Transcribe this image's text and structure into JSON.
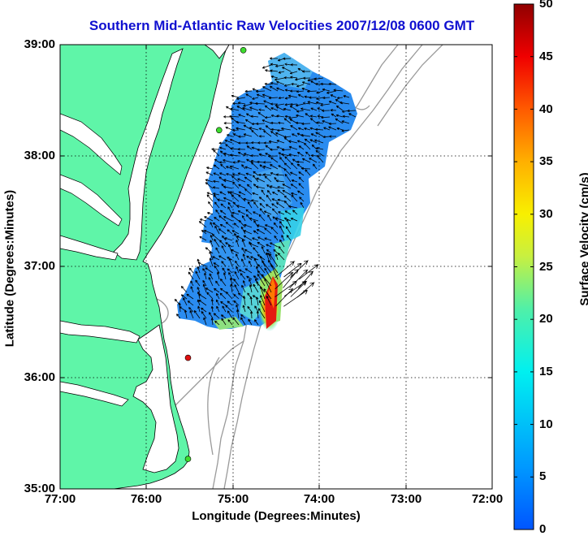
{
  "title": "Southern Mid-Atlantic Raw Velocities 2007/12/08 0600 GMT",
  "x_axis": {
    "label": "Longitude (Degrees:Minutes)",
    "ticks": [
      "77:00",
      "76:00",
      "75:00",
      "74:00",
      "73:00",
      "72:00"
    ]
  },
  "y_axis": {
    "label": "Latitude (Degrees:Minutes)",
    "ticks": [
      "39:00",
      "38:00",
      "37:00",
      "36:00",
      "35:00"
    ]
  },
  "colorbar": {
    "label": "Surface Velocity (cm/s)",
    "ticks": [
      "50",
      "45",
      "40",
      "35",
      "30",
      "25",
      "20",
      "15",
      "10",
      "5",
      "0"
    ],
    "range": [
      0,
      50
    ],
    "colormap": "jet"
  },
  "map": {
    "lon_range": [
      -77,
      -72
    ],
    "lat_range": [
      35,
      39
    ],
    "land_color": "#5ff5a8",
    "bathymetry_color": "#9a9a9a",
    "grid": "dotted",
    "stations": [
      {
        "lon": -74.88,
        "lat": 38.95,
        "color": "#3ddc2e"
      },
      {
        "lon": -75.16,
        "lat": 38.23,
        "color": "#3ddc2e"
      },
      {
        "lon": -75.52,
        "lat": 36.18,
        "color": "#e01010"
      },
      {
        "lon": -75.52,
        "lat": 35.27,
        "color": "#3ddc2e"
      }
    ]
  }
}
